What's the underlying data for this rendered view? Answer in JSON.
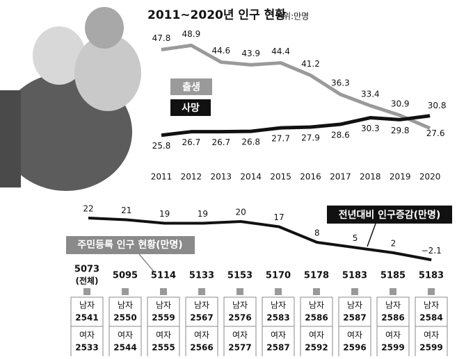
{
  "chart_data": [
    {
      "type": "line",
      "title": "2011~2020년 인구 현황",
      "subtitle": "단위:만명",
      "categories": [
        "2011",
        "2012",
        "2013",
        "2014",
        "2015",
        "2016",
        "2017",
        "2018",
        "2019",
        "2020"
      ],
      "ylim": [
        22,
        52
      ],
      "series": [
        {
          "name": "출생",
          "color": "#9a9a9a",
          "values": [
            47.8,
            48.9,
            44.6,
            43.9,
            44.4,
            41.2,
            36.3,
            33.4,
            30.9,
            27.6
          ]
        },
        {
          "name": "사망",
          "color": "#111111",
          "values": [
            25.8,
            26.7,
            26.7,
            26.8,
            27.7,
            27.9,
            28.6,
            30.3,
            29.8,
            30.8
          ]
        }
      ]
    },
    {
      "type": "line",
      "title": "전년대비 인구증감(만명)",
      "ylim": [
        -10,
        30
      ],
      "series": [
        {
          "name": "전년대비 인구증감(만명)",
          "color": "#111111",
          "values": [
            22,
            21,
            19,
            19,
            20,
            17,
            8,
            5,
            2,
            -2.1
          ],
          "value_labels": [
            "22",
            "21",
            "19",
            "19",
            "20",
            "17",
            "8",
            "5",
            "2",
            "−2.1"
          ]
        }
      ]
    },
    {
      "type": "table",
      "title": "주민등록 인구 현황(만명)",
      "total_note": "(전체)",
      "male_label": "남자",
      "female_label": "여자",
      "totals": [
        5073,
        5095,
        5114,
        5133,
        5153,
        5170,
        5178,
        5183,
        5185,
        5183
      ],
      "male": [
        2541,
        2550,
        2559,
        2567,
        2576,
        2583,
        2586,
        2587,
        2586,
        2584
      ],
      "female": [
        2533,
        2544,
        2555,
        2566,
        2577,
        2587,
        2592,
        2596,
        2599,
        2599
      ]
    }
  ]
}
